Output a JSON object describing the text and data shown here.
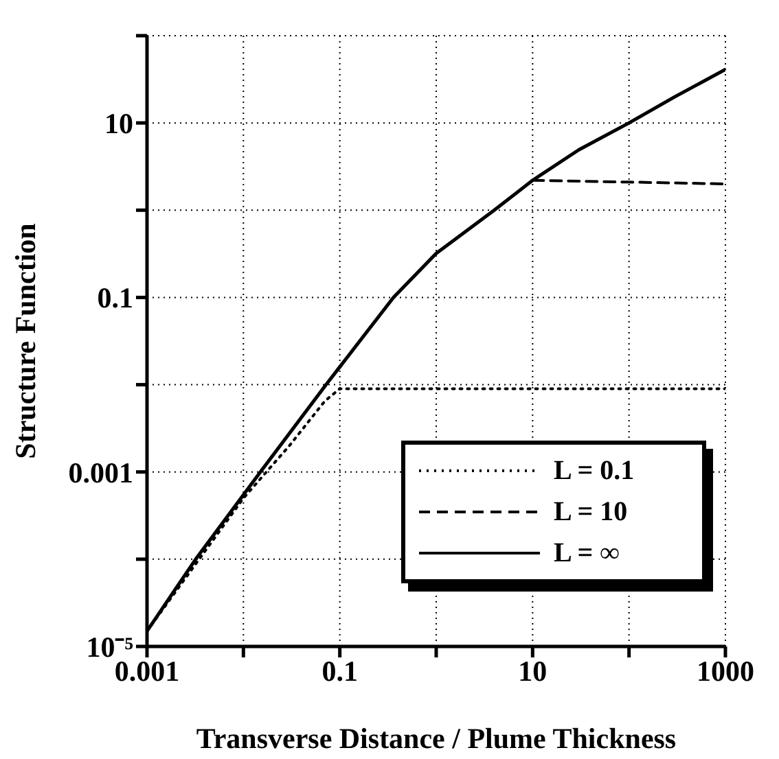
{
  "chart_data": {
    "type": "line",
    "xlabel": "Transverse Distance / Plume Thickness",
    "ylabel": "Structure Function",
    "log": "xy",
    "grid": true,
    "legend": "bottom right",
    "xlim": [
      0.001,
      1000
    ],
    "xticks": [
      0.001,
      {
        "value": 0.01,
        "label": null
      },
      0.1,
      {
        "value": 1,
        "label": null
      },
      10,
      {
        "value": 100,
        "label": null
      },
      1000
    ],
    "ylim": [
      1e-05,
      100
    ],
    "yticks": [
      {
        "value": 1e-05,
        "label": "10⁻⁵"
      },
      {
        "value": 0.0001,
        "label": null
      },
      0.001,
      {
        "value": 0.01,
        "label": null
      },
      0.1,
      {
        "value": 1,
        "label": null
      },
      10,
      {
        "value": 100,
        "label": null
      }
    ],
    "series": [
      {
        "name": "L = 0.1",
        "color": "#000000",
        "line_style": "dotted",
        "x": [
          0.001,
          0.01,
          0.03,
          0.07,
          0.1,
          1,
          10,
          100,
          1000
        ],
        "values": [
          1.5e-05,
          0.0005,
          0.002,
          0.0065,
          0.009,
          0.009,
          0.009,
          0.009,
          0.009
        ]
      },
      {
        "name": "L = 10",
        "color": "#000000",
        "line_style": "dashed",
        "x": [
          10,
          100,
          1000
        ],
        "values": [
          2.2,
          2.1,
          2.0
        ]
      },
      {
        "name": "L = ∞",
        "color": "#000000",
        "line_style": "solid",
        "x": [
          0.001,
          0.0032,
          0.015,
          0.072,
          0.1,
          0.36,
          1,
          4,
          10,
          30,
          100,
          300,
          1000
        ],
        "values": [
          1.5e-05,
          0.0001,
          0.001,
          0.01,
          0.016,
          0.1,
          0.32,
          1,
          2.2,
          4.9,
          10,
          20,
          41
        ]
      }
    ]
  }
}
